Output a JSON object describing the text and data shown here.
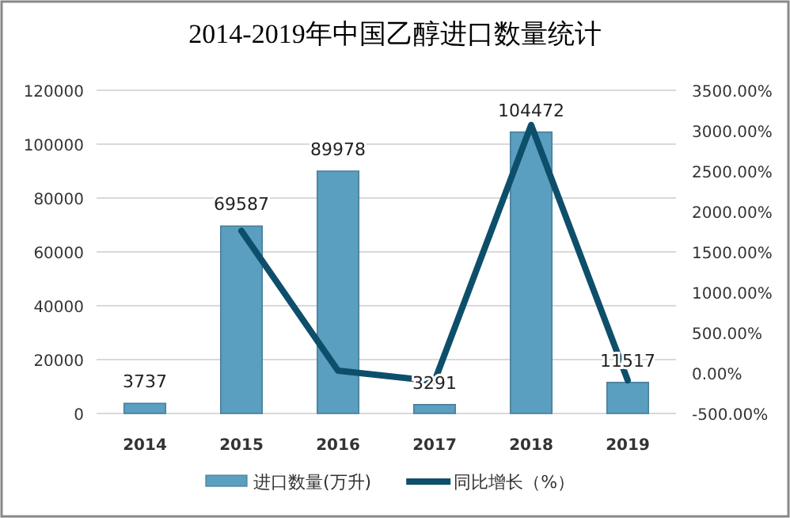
{
  "chart_data": {
    "type": "bar",
    "title": "2014-2019年中国乙醇进口数量统计",
    "categories": [
      "2014",
      "2015",
      "2016",
      "2017",
      "2018",
      "2019"
    ],
    "series": [
      {
        "name": "进口数量(万升)",
        "color": "#5a9ec0",
        "values": [
          3737,
          69587,
          89978,
          3291,
          104472,
          11517
        ]
      },
      {
        "name": "同比增长（%）",
        "type": "line",
        "axis": "y2",
        "color": "#0d4f6b",
        "values": [
          null,
          1760,
          30,
          -100,
          3070,
          -90
        ]
      }
    ],
    "ylim": [
      0,
      120000
    ],
    "yticks": [
      0,
      20000,
      40000,
      60000,
      80000,
      100000,
      120000
    ],
    "y2lim": [
      -500,
      3500
    ],
    "y2ticks": [
      {
        "value": -500,
        "label": "-500.00%"
      },
      {
        "value": 0,
        "label": "0.00%"
      },
      {
        "value": 500,
        "label": "500.00%"
      },
      {
        "value": 1000,
        "label": "1000.00%"
      },
      {
        "value": 1500,
        "label": "1500.00%"
      },
      {
        "value": 2000,
        "label": "2000.00%"
      },
      {
        "value": 2500,
        "label": "2500.00%"
      },
      {
        "value": 3000,
        "label": "3000.00%"
      },
      {
        "value": 3500,
        "label": "3500.00%"
      }
    ],
    "value_labels": [
      "3737",
      "69587",
      "89978",
      "3291",
      "104472",
      "11517"
    ],
    "grid": "y",
    "legend": "bottom",
    "marker": "none",
    "line_style": "solid"
  }
}
